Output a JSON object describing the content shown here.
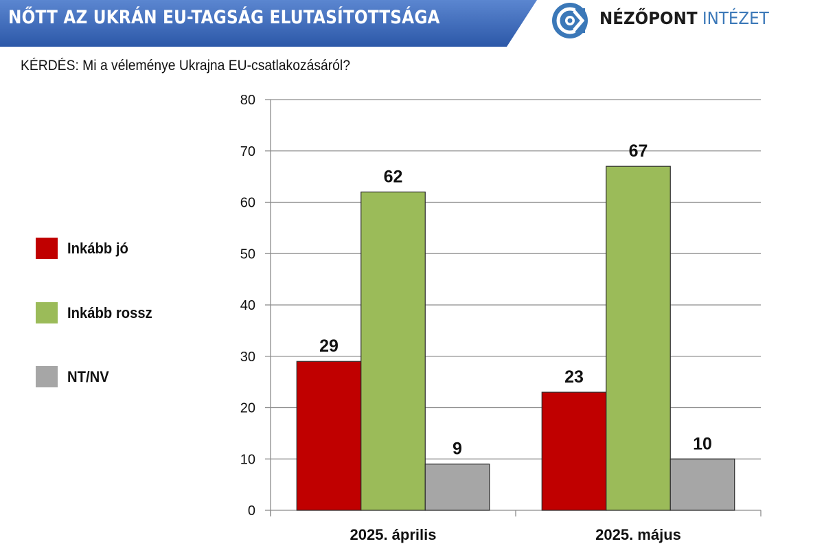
{
  "header": {
    "title": "NŐTT AZ UKRÁN EU-TAGSÁG ELUTASÍTOTTSÁGA",
    "bar_color_top": "#5b86d0",
    "bar_color_bottom": "#2c58a8"
  },
  "brand": {
    "logo_icon": "nezopont-logo-icon",
    "name_part1": "NÉZŐPONT",
    "name_part2": "INTÉZET",
    "color_primary": "#3b78b8"
  },
  "question": "KÉRDÉS: Mi a véleménye Ukrajna EU-csatlakozásáról?",
  "chart_data": {
    "type": "bar",
    "title": "NŐTT AZ UKRÁN EU-TAGSÁG ELUTASÍTOTTSÁGA",
    "subtitle": "KÉRDÉS: Mi a véleménye Ukrajna EU-csatlakozásáról?",
    "xlabel": "",
    "ylabel": "",
    "categories": [
      "2025. április",
      "2025. május"
    ],
    "series": [
      {
        "name": "Inkább jó",
        "color": "#c00000",
        "values": [
          29,
          23
        ]
      },
      {
        "name": "Inkább rossz",
        "color": "#9bbb59",
        "values": [
          62,
          67
        ]
      },
      {
        "name": "NT/NV",
        "color": "#a6a6a6",
        "values": [
          9,
          10
        ]
      }
    ],
    "ylim": [
      0,
      80
    ],
    "yticks": [
      0,
      10,
      20,
      30,
      40,
      50,
      60,
      70,
      80
    ],
    "grid": true,
    "legend_position": "left",
    "data_labels": true
  }
}
